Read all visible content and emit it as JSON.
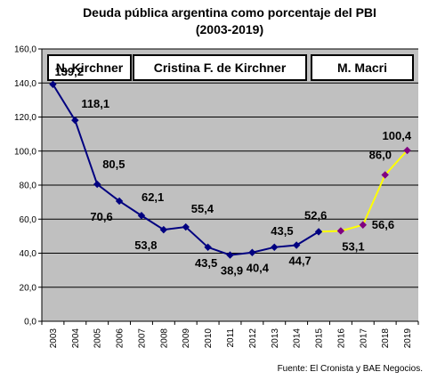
{
  "chart_data": {
    "type": "line",
    "title": "Deuda pública argentina como porcentaje del PBI",
    "subtitle": "(2003-2019)",
    "x": [
      "2003",
      "2004",
      "2005",
      "2006",
      "2007",
      "2008",
      "2009",
      "2010",
      "2011",
      "2012",
      "2013",
      "2014",
      "2015",
      "2016",
      "2017",
      "2018",
      "2019"
    ],
    "series": [
      {
        "values": [
          139.2,
          118.1,
          80.5,
          70.6,
          62.1,
          53.8,
          55.4,
          43.5,
          38.9,
          40.4,
          43.5,
          44.7,
          52.6,
          53.1,
          56.6,
          86.0,
          100.4
        ],
        "color_first": "#000080",
        "color_second": "#ffff00",
        "split_index": 12
      }
    ],
    "data_labels": [
      "139,2",
      "118,1",
      "80,5",
      "70,6",
      "62,1",
      "53,8",
      "55,4",
      "43,5",
      "38,9",
      "40,4",
      "43,5",
      "44,7",
      "52,6",
      "53,1",
      "56,6",
      "86,0",
      "100,4"
    ],
    "y_ticks": [
      "0,0",
      "20,0",
      "40,0",
      "60,0",
      "80,0",
      "100,0",
      "120,0",
      "140,0",
      "160,0"
    ],
    "ylim": [
      0,
      160
    ],
    "grid": true,
    "plot_background": "#c0c0c0",
    "periods": [
      {
        "label": "N. Kirchner"
      },
      {
        "label": "Cristina F. de Kirchner"
      },
      {
        "label": "M. Macri"
      }
    ],
    "source": "Fuente: El Cronista y BAE Negocios."
  }
}
